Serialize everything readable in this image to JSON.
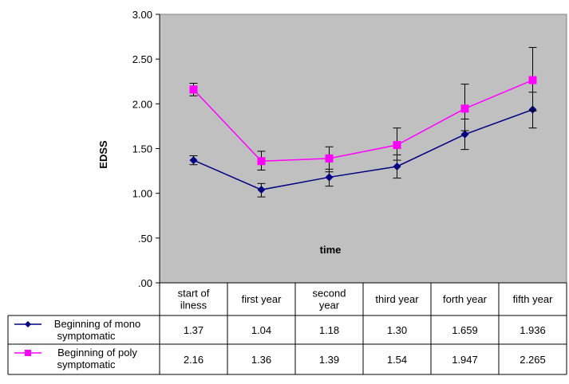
{
  "chart_data": {
    "type": "line",
    "ylabel": "EDSS",
    "plot_annotation": "time",
    "ylim": [
      0,
      3
    ],
    "y_ticks": [
      ".00",
      ".50",
      "1.00",
      "1.50",
      "2.00",
      "2.50",
      "3.00"
    ],
    "y_tick_values": [
      0,
      0.5,
      1,
      1.5,
      2,
      2.5,
      3
    ],
    "grid": false,
    "plot_background": "#c0c0c0",
    "categories": [
      [
        "start of",
        "ilness"
      ],
      [
        "first year"
      ],
      [
        "second",
        "year"
      ],
      [
        "third year"
      ],
      [
        "forth year"
      ],
      [
        "fifth year"
      ]
    ],
    "series": [
      {
        "name": [
          "Beginning of mono",
          "symptomatic"
        ],
        "color": "#000080",
        "marker": "diamond",
        "values": [
          1.37,
          1.04,
          1.18,
          1.3,
          1.659,
          1.936
        ],
        "value_labels": [
          "1.37",
          "1.04",
          "1.18",
          "1.30",
          "1.659",
          "1.936"
        ],
        "error_low": [
          1.32,
          0.96,
          1.08,
          1.17,
          1.49,
          1.73
        ],
        "error_high": [
          1.42,
          1.11,
          1.27,
          1.43,
          1.83,
          2.13
        ]
      },
      {
        "name": [
          "Beginning of poly",
          "symptomatic"
        ],
        "color": "#ff00ff",
        "marker": "square",
        "values": [
          2.16,
          1.36,
          1.39,
          1.54,
          1.947,
          2.265
        ],
        "value_labels": [
          "2.16",
          "1.36",
          "1.39",
          "1.54",
          "1.947",
          "2.265"
        ],
        "error_low": [
          2.09,
          1.26,
          1.24,
          1.37,
          1.7,
          1.92
        ],
        "error_high": [
          2.23,
          1.47,
          1.52,
          1.73,
          2.22,
          2.63
        ]
      }
    ]
  }
}
